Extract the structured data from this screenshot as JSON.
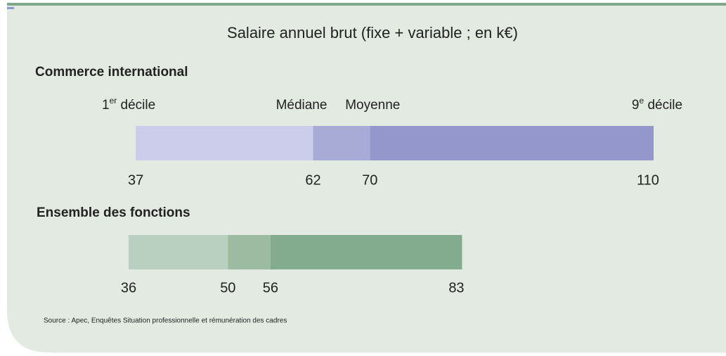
{
  "chart_data": {
    "type": "range_bar",
    "title": "Salaire annuel brut (fixe + variable ; en k€)",
    "quantile_labels": [
      [
        "1",
        "er",
        " décile"
      ],
      [
        "Médiane"
      ],
      [
        "Moyenne"
      ],
      [
        "9",
        "e",
        " décile"
      ]
    ],
    "groups": [
      {
        "name": "Commerce international",
        "values": [
          37,
          62,
          70,
          110
        ],
        "colors": [
          "#cbcdea",
          "#a9abd7",
          "#9497cb"
        ]
      },
      {
        "name": "Ensemble des fonctions",
        "values": [
          36,
          50,
          56,
          83
        ],
        "colors": [
          "#b9cfbf",
          "#9cbba1",
          "#83ab8d"
        ]
      }
    ],
    "source": "Source : Apec, Enquêtes Situation professionnelle et rémunération des cadres"
  }
}
